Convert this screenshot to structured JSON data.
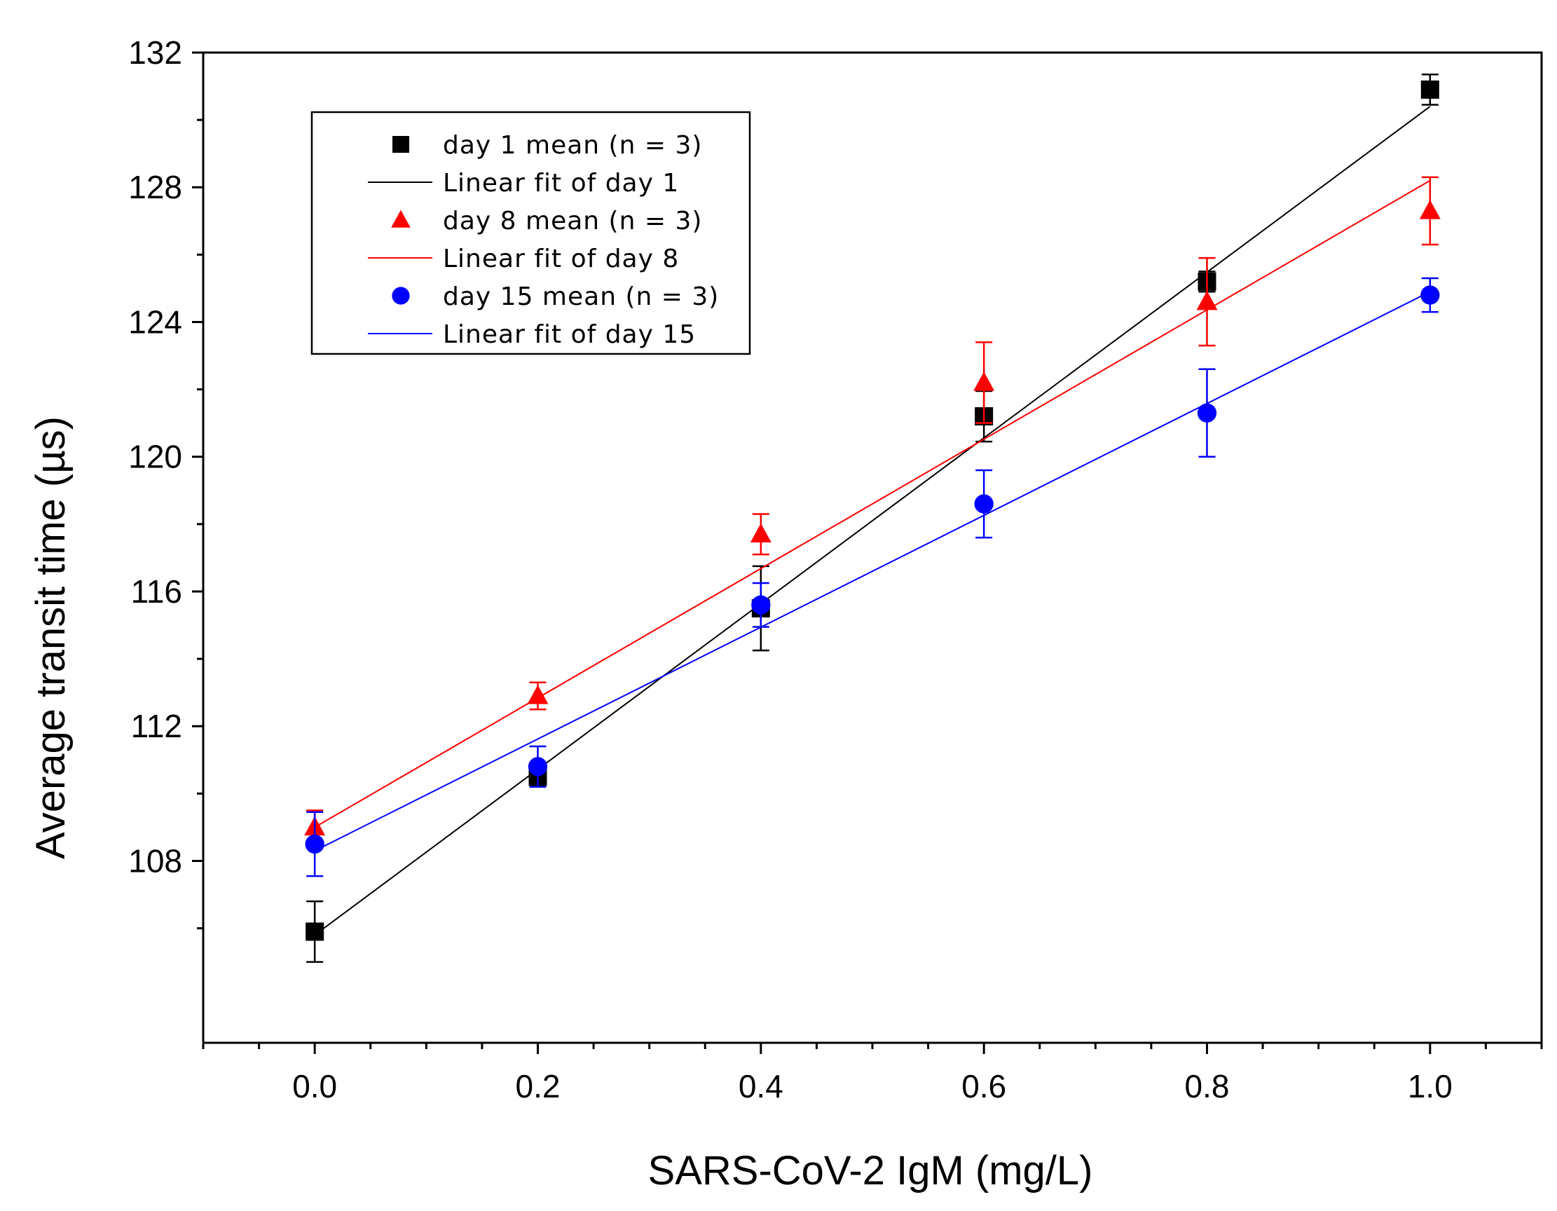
{
  "chart_data": {
    "type": "scatter",
    "xlabel": "SARS-CoV-2 IgM (mg/L)",
    "ylabel": "Average transit time (µs)",
    "xlim": [
      -0.1,
      1.1
    ],
    "ylim": [
      102.6,
      132
    ],
    "xticks": [
      0.0,
      0.2,
      0.4,
      0.6,
      0.8,
      1.0
    ],
    "xtick_labels": [
      "0.0",
      "0.2",
      "0.4",
      "0.6",
      "0.8",
      "1.0"
    ],
    "yticks": [
      108,
      112,
      116,
      120,
      124,
      128,
      132
    ],
    "ytick_labels": [
      "108",
      "112",
      "116",
      "120",
      "124",
      "128",
      "132"
    ],
    "legend_position": "top-left",
    "x": [
      0.0,
      0.2,
      0.4,
      0.6,
      0.8,
      1.0
    ],
    "series": [
      {
        "name": "day 1 mean (n = 3)",
        "fit_name": "Linear fit of day 1",
        "color": "#000000",
        "marker": "square",
        "values": [
          105.9,
          110.5,
          115.5,
          121.2,
          125.2,
          130.9
        ],
        "errors": [
          0.9,
          0.25,
          1.25,
          0.75,
          0.3,
          0.45
        ],
        "fit": [
          105.8,
          130.4
        ]
      },
      {
        "name": "day 8 mean (n = 3)",
        "fit_name": "Linear fit of day 8",
        "color": "#ff0000",
        "marker": "triangle",
        "values": [
          109.0,
          112.9,
          117.7,
          122.2,
          124.6,
          127.3
        ],
        "errors": [
          0.5,
          0.4,
          0.6,
          1.2,
          1.3,
          1.0
        ],
        "fit": [
          109.0,
          128.2
        ]
      },
      {
        "name": "day 15 mean (n = 3)",
        "fit_name": "Linear fit of day 15",
        "color": "#0000ff",
        "marker": "circle",
        "values": [
          108.5,
          110.8,
          115.6,
          118.6,
          121.3,
          124.8
        ],
        "errors": [
          0.95,
          0.6,
          0.65,
          1.0,
          1.3,
          0.5
        ],
        "fit": [
          108.3,
          124.9
        ]
      }
    ]
  }
}
